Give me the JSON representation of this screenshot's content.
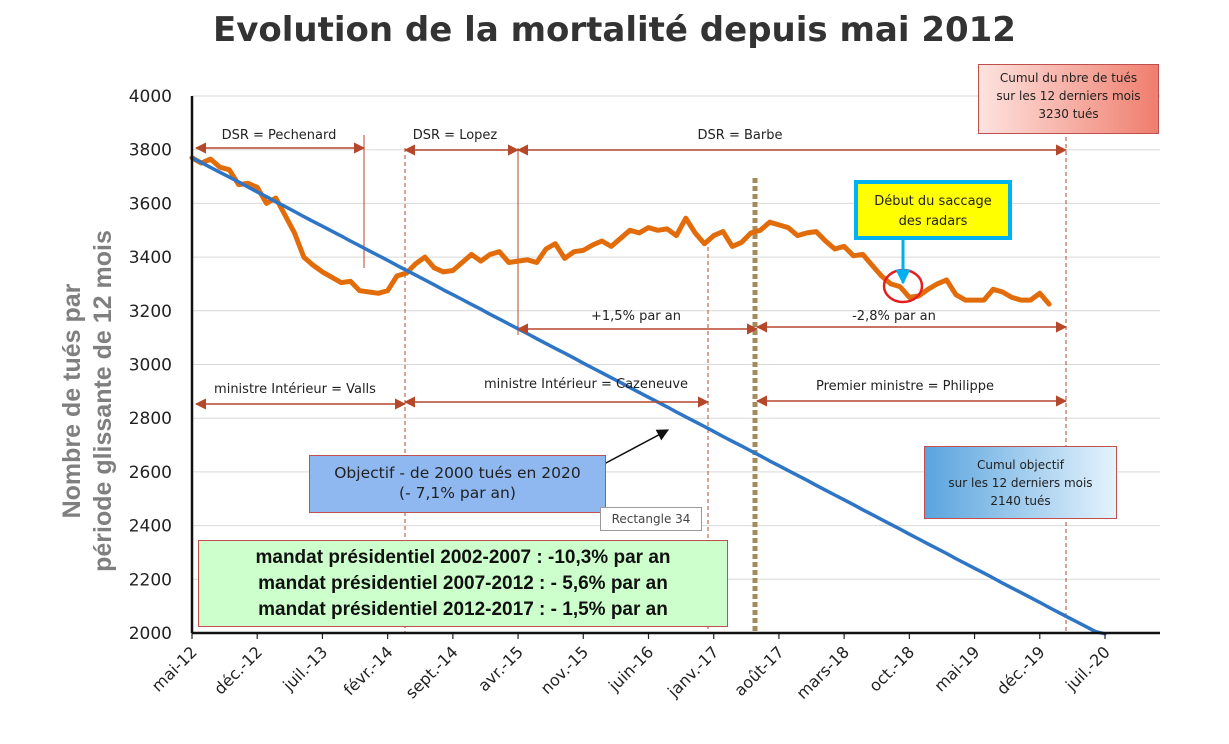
{
  "chart_data": {
    "type": "line",
    "title": "Evolution de la mortalité depuis mai 2012",
    "ylabel_line1": "Nombre de tués par",
    "ylabel_line2": "période  glissante de 12 mois",
    "ylim": [
      2000,
      4000
    ],
    "yticks": [
      "2000",
      "2200",
      "2400",
      "2600",
      "2800",
      "3000",
      "3200",
      "3400",
      "3600",
      "3800",
      "4000"
    ],
    "xticks": [
      "mai-12",
      "déc.-12",
      "juil.-13",
      "févr.-14",
      "sept.-14",
      "avr.-15",
      "nov.-15",
      "juin-16",
      "janv.-17",
      "août-17",
      "mars-18",
      "oct.-18",
      "mai-19",
      "déc.-19",
      "juil.-20"
    ],
    "grid": true,
    "legend": "none",
    "colors": {
      "actual": "#e36c0a",
      "objective": "#2f75c6",
      "annotation": "#b5472b",
      "divider": "#a58a5a"
    },
    "series": [
      {
        "key": "actual",
        "start": "mai-12",
        "values": [
          3770,
          3750,
          3765,
          3735,
          3725,
          3670,
          3675,
          3660,
          3600,
          3620,
          3555,
          3490,
          3400,
          3370,
          3345,
          3325,
          3305,
          3310,
          3275,
          3270,
          3265,
          3275,
          3330,
          3340,
          3375,
          3400,
          3360,
          3345,
          3350,
          3380,
          3410,
          3385,
          3410,
          3420,
          3380,
          3385,
          3390,
          3380,
          3430,
          3450,
          3395,
          3420,
          3425,
          3445,
          3460,
          3440,
          3470,
          3500,
          3490,
          3510,
          3500,
          3505,
          3480,
          3545,
          3490,
          3450,
          3480,
          3495,
          3440,
          3455,
          3490,
          3500,
          3530,
          3520,
          3510,
          3480,
          3490,
          3495,
          3460,
          3430,
          3440,
          3405,
          3410,
          3370,
          3330,
          3300,
          3290,
          3250,
          3255,
          3280,
          3300,
          3315,
          3260,
          3240,
          3240,
          3240,
          3280,
          3270,
          3250,
          3240,
          3240,
          3265,
          3225
        ]
      },
      {
        "key": "objective",
        "start": "mai-12",
        "values": [
          3770,
          3752,
          3734,
          3716,
          3698,
          3680,
          3661,
          3643,
          3625,
          3606,
          3588,
          3570,
          3551,
          3533,
          3515,
          3497,
          3479,
          3460,
          3442,
          3424,
          3406,
          3388,
          3369,
          3351,
          3333,
          3315,
          3297,
          3278,
          3260,
          3242,
          3224,
          3206,
          3187,
          3169,
          3151,
          3133,
          3115,
          3096,
          3078,
          3060,
          3042,
          3024,
          3005,
          2987,
          2969,
          2951,
          2933,
          2914,
          2896,
          2878,
          2860,
          2842,
          2823,
          2805,
          2787,
          2769,
          2751,
          2732,
          2714,
          2696,
          2678,
          2660,
          2641,
          2623,
          2605,
          2587,
          2569,
          2550,
          2532,
          2514,
          2496,
          2478,
          2459,
          2441,
          2423,
          2405,
          2387,
          2368,
          2350,
          2332,
          2314,
          2296,
          2277,
          2259,
          2241,
          2223,
          2205,
          2186,
          2168,
          2150,
          2132,
          2114,
          2095,
          2077,
          2059,
          2041,
          2023,
          2005,
          1997
        ]
      }
    ],
    "annotations": {
      "dsr_pechenard": "DSR = Pechenard",
      "dsr_lopez": "DSR = Lopez",
      "dsr_barbe": "DSR = Barbe",
      "growth_1": "+1,5% par an",
      "growth_2": "-2,8% par an",
      "ministre_valls": "ministre Intérieur = Valls",
      "ministre_cazeneuve": "ministre Intérieur = Cazeneuve",
      "premier_ministre": "Premier ministre  = Philippe"
    }
  },
  "boxes": {
    "cumul": {
      "line1": "Cumul du nbre de tués",
      "line2": "sur les 12 derniers mois",
      "line3": "3230 tués"
    },
    "saccage": {
      "line1": "Début du saccage",
      "line2": "des radars"
    },
    "objectif": {
      "line1": "Objectif - de 2000 tués en 2020",
      "line2": "(- 7,1% par an)"
    },
    "cumul_objectif": {
      "line1": "Cumul objectif",
      "line2": "sur les 12 derniers mois",
      "line3": "2140 tués"
    },
    "rectangle": "Rectangle 34",
    "mandats": [
      "mandat présidentiel 2002-2007 : -10,3% par an",
      "mandat présidentiel 2007-2012 : - 5,6% par an",
      "mandat présidentiel 2012-2017 : - 1,5% par an"
    ]
  }
}
